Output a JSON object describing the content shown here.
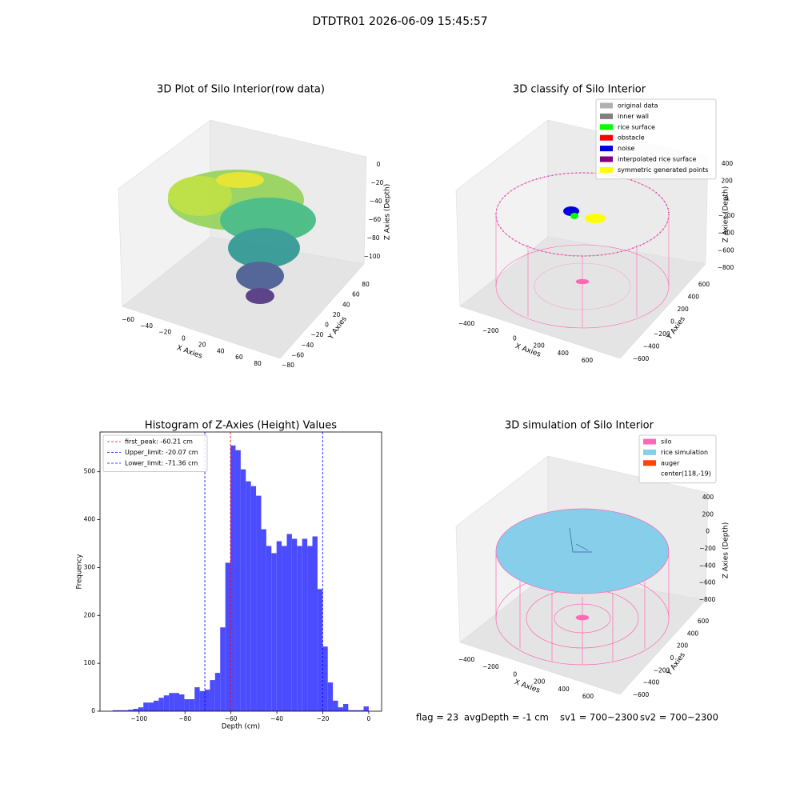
{
  "suptitle": "DTDTR01 2026-06-09 15:45:57",
  "footer": [
    "flag = 23",
    "avgDepth = -1 cm",
    "sv1 = 700~2300",
    "sv2 = 700~2300"
  ],
  "chart_data": [
    {
      "type": "scatter3d",
      "title": "3D Plot of Silo Interior(row data)",
      "xlabel": "X Axies",
      "ylabel": "Y Axies",
      "zlabel": "Z Axies (Depth)",
      "xticks": [
        {
          "value": -60,
          "label": "−60"
        },
        {
          "value": -40,
          "label": "−40"
        },
        {
          "value": -20,
          "label": "−20"
        },
        0,
        20,
        40,
        60,
        80
      ],
      "yticks": [
        {
          "value": -80,
          "label": "−80"
        },
        {
          "value": -60,
          "label": "−60"
        },
        {
          "value": -40,
          "label": "−40"
        },
        {
          "value": -20,
          "label": "−20"
        },
        0,
        20,
        40,
        60,
        80
      ],
      "zticks": [
        {
          "value": -100,
          "label": "−100"
        },
        {
          "value": -80,
          "label": "−80"
        },
        {
          "value": -60,
          "label": "−60"
        },
        {
          "value": -40,
          "label": "−40"
        },
        {
          "value": -20,
          "label": "−20"
        },
        0
      ]
    },
    {
      "type": "scatter3d",
      "title": "3D classify of Silo Interior",
      "xlabel": "X Axies",
      "ylabel": "Y Axies",
      "zlabel": "Z Axies (Depth)",
      "xticks": [
        {
          "value": -400,
          "label": "−400"
        },
        {
          "value": -200,
          "label": "−200"
        },
        0,
        200,
        400,
        600
      ],
      "yticks": [
        {
          "value": -600,
          "label": "−600"
        },
        {
          "value": -400,
          "label": "−400"
        },
        {
          "value": -200,
          "label": "−200"
        },
        0,
        200,
        400,
        600
      ],
      "zticks": [
        {
          "value": -800,
          "label": "−800"
        },
        {
          "value": -600,
          "label": "−600"
        },
        {
          "value": -400,
          "label": "−400"
        },
        {
          "value": -200,
          "label": "−200"
        },
        0,
        200,
        400
      ],
      "legend": [
        {
          "name": "original data",
          "color": "#b0b0b0"
        },
        {
          "name": "inner wall",
          "color": "#808080"
        },
        {
          "name": "rice surface",
          "color": "#00ff00"
        },
        {
          "name": "obstacle",
          "color": "#ff0000"
        },
        {
          "name": "noise",
          "color": "#0000e0"
        },
        {
          "name": "interpolated rice surface",
          "color": "#800080"
        },
        {
          "name": "symmetric generated points",
          "color": "#ffff00"
        }
      ]
    },
    {
      "type": "histogram",
      "title": "Histogram of Z-Axies (Height) Values",
      "xlabel": "Depth (cm)",
      "ylabel": "Frequency",
      "color": "#4b4bff",
      "bins": [
        -111.5,
        -109.27,
        -107.04,
        -104.81,
        -102.58,
        -100.35,
        -98.12,
        -95.89,
        -93.66,
        -91.43,
        -89.2,
        -86.97,
        -84.74,
        -82.51,
        -80.28,
        -78.05,
        -75.82,
        -73.59,
        -71.36,
        -69.13,
        -66.9,
        -64.67,
        -62.44,
        -60.21,
        -57.98,
        -55.75,
        -53.52,
        -51.29,
        -49.06,
        -46.83,
        -44.6,
        -42.37,
        -40.14,
        -37.91,
        -35.68,
        -33.45,
        -31.22,
        -28.99,
        -26.76,
        -24.53,
        -22.3,
        -20.07,
        -17.84,
        -15.61,
        -13.38,
        -11.15,
        -8.92,
        -6.69,
        -4.46,
        -2.23,
        0
      ],
      "counts": [
        2,
        2,
        2,
        3,
        5,
        8,
        18,
        18,
        22,
        28,
        33,
        38,
        38,
        35,
        25,
        25,
        50,
        42,
        45,
        65,
        80,
        175,
        310,
        555,
        545,
        505,
        480,
        470,
        450,
        380,
        345,
        330,
        355,
        345,
        370,
        360,
        345,
        360,
        345,
        365,
        255,
        135,
        60,
        22,
        8,
        15,
        2,
        2,
        2,
        10
      ],
      "xlim": [
        -117,
        5.6
      ],
      "ylim": [
        0,
        583
      ],
      "xticks": [
        {
          "value": -100,
          "label": "−100"
        },
        {
          "value": -80,
          "label": "−80"
        },
        {
          "value": -60,
          "label": "−60"
        },
        {
          "value": -40,
          "label": "−40"
        },
        {
          "value": -20,
          "label": "−20"
        },
        0
      ],
      "yticks": [
        0,
        100,
        200,
        300,
        400,
        500
      ],
      "vlines": [
        {
          "label": "first_peak: -60.21 cm",
          "value": -60.21,
          "color": "#ff0000"
        },
        {
          "label": "Upper_limit: -20.07 cm",
          "value": -20.07,
          "color": "#0000ff"
        },
        {
          "label": "Lower_limit: -71.36 cm",
          "value": -71.36,
          "color": "#0000ff"
        }
      ],
      "legend_loc": "upper left"
    },
    {
      "type": "scatter3d",
      "title": "3D simulation of Silo Interior",
      "xlabel": "X Axies",
      "ylabel": "Y Axies",
      "zlabel": "Z Axies (Depth)",
      "xticks": [
        {
          "value": -400,
          "label": "−400"
        },
        {
          "value": -200,
          "label": "−200"
        },
        0,
        200,
        400,
        600
      ],
      "yticks": [
        {
          "value": -600,
          "label": "−600"
        },
        {
          "value": -400,
          "label": "−400"
        },
        {
          "value": -200,
          "label": "−200"
        },
        0,
        200,
        400,
        600
      ],
      "zticks": [
        {
          "value": -800,
          "label": "−800"
        },
        {
          "value": -600,
          "label": "−600"
        },
        {
          "value": -400,
          "label": "−400"
        },
        {
          "value": -200,
          "label": "−200"
        },
        0,
        200,
        400
      ],
      "legend": [
        {
          "name": "silo",
          "color": "#ff69b4"
        },
        {
          "name": "rice simulation",
          "color": "#87ceeb"
        },
        {
          "name": "auger",
          "color": "#ff4500"
        },
        {
          "name": "center(118,-19)",
          "color": null
        }
      ]
    }
  ]
}
